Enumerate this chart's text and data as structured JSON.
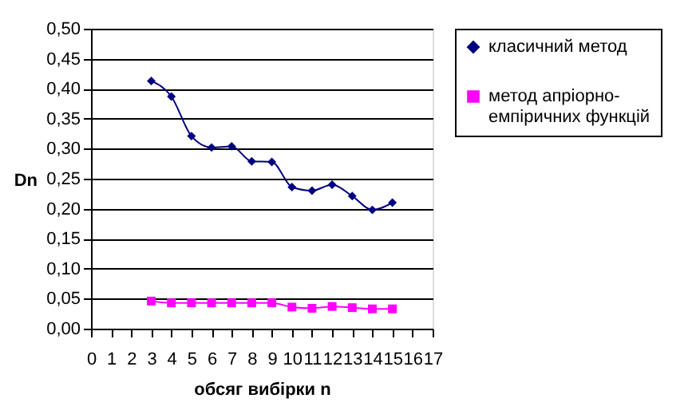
{
  "chart_data": {
    "type": "line",
    "xlabel": "обсяг вибірки n",
    "ylabel": "Dn",
    "x": [
      3,
      4,
      5,
      6,
      7,
      8,
      9,
      10,
      11,
      12,
      13,
      14,
      15
    ],
    "series": [
      {
        "name": "класичний метод",
        "color": "#000080",
        "marker": "diamond",
        "values": [
          0.413,
          0.387,
          0.321,
          0.302,
          0.304,
          0.279,
          0.278,
          0.236,
          0.23,
          0.24,
          0.221,
          0.198,
          0.21
        ]
      },
      {
        "name": "метод апріорно-емпіричних функцій",
        "color": "#ff00ff",
        "marker": "square",
        "values": [
          0.046,
          0.043,
          0.043,
          0.043,
          0.043,
          0.043,
          0.043,
          0.036,
          0.034,
          0.037,
          0.035,
          0.033,
          0.033
        ]
      }
    ],
    "xlim": [
      0,
      17
    ],
    "xticks": [
      0,
      1,
      2,
      3,
      4,
      5,
      6,
      7,
      8,
      9,
      10,
      11,
      12,
      13,
      14,
      15,
      16,
      17
    ],
    "ylim": [
      0,
      0.5
    ],
    "yticks": [
      {
        "value": 0,
        "label": "0,00"
      },
      {
        "value": 0.05,
        "label": "0,05"
      },
      {
        "value": 0.1,
        "label": "0,10"
      },
      {
        "value": 0.15,
        "label": "0,15"
      },
      {
        "value": 0.2,
        "label": "0,20"
      },
      {
        "value": 0.25,
        "label": "0,25"
      },
      {
        "value": 0.3,
        "label": "0,30"
      },
      {
        "value": 0.35,
        "label": "0,35"
      },
      {
        "value": 0.4,
        "label": "0,40"
      },
      {
        "value": 0.45,
        "label": "0,45"
      },
      {
        "value": 0.5,
        "label": "0,50"
      }
    ],
    "grid": "y",
    "legend": "right"
  }
}
